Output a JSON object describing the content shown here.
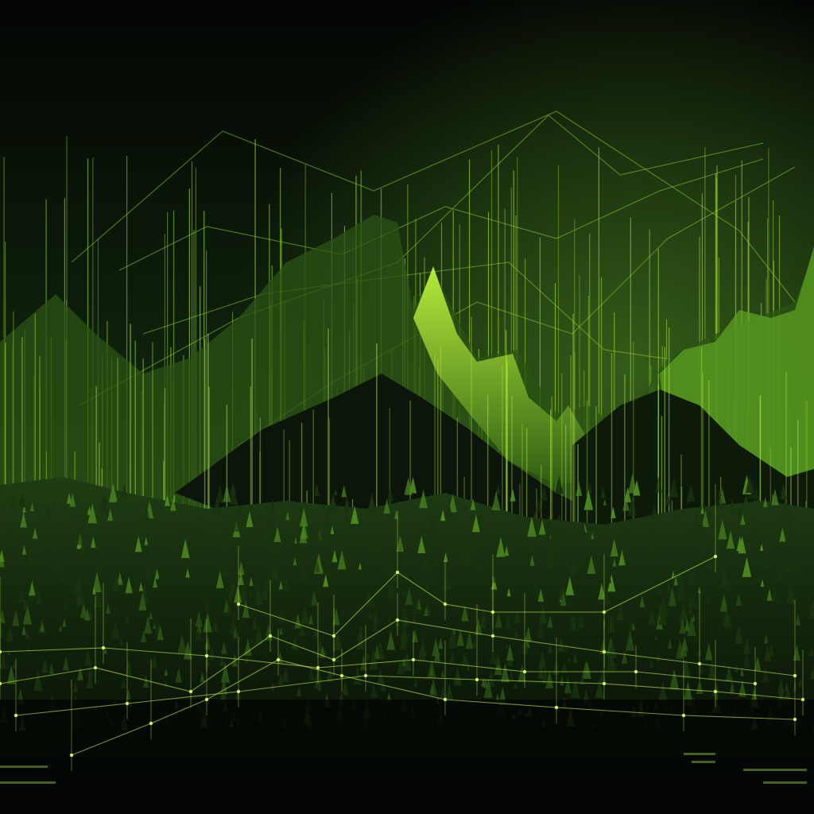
{
  "scene": {
    "description_free": true,
    "palette": {
      "background_top": "#040604",
      "background_mid": "#132a0f",
      "glow": "#3f6e1c",
      "accent": "#a8e22a",
      "accent_bright": "#d9ff5a",
      "mountain_dark": "#0c170a",
      "forest": "#1d3a12",
      "forest_light": "#4d8a20"
    }
  }
}
